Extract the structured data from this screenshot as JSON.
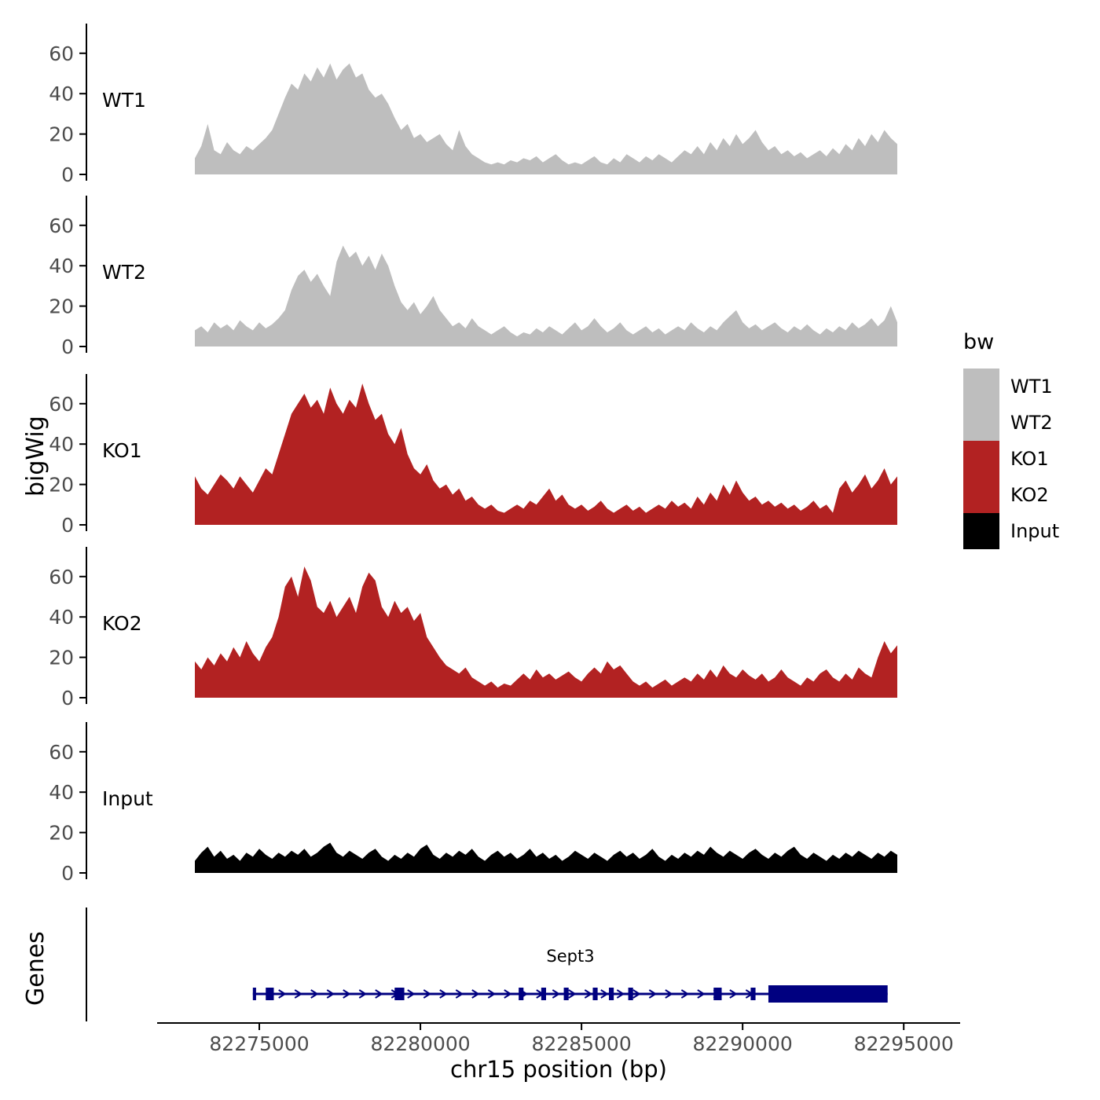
{
  "figure": {
    "y_axis_title": "bigWig",
    "genes_axis_title": "Genes",
    "x_axis_title": "chr15 position (bp)",
    "x_ticks": [
      82275000,
      82280000,
      82285000,
      82290000,
      82295000
    ],
    "x_tick_labels": [
      "82275000",
      "82280000",
      "82285000",
      "82290000",
      "82295000"
    ]
  },
  "legend": {
    "title": "bw",
    "entries": [
      {
        "label": "WT1",
        "color": "#BEBEBE"
      },
      {
        "label": "WT2",
        "color": "#BEBEBE"
      },
      {
        "label": "KO1",
        "color": "#B22222"
      },
      {
        "label": "KO2",
        "color": "#B22222"
      },
      {
        "label": "Input",
        "color": "#000000"
      }
    ]
  },
  "chart_data": {
    "type": "area",
    "title": "",
    "xlabel": "chr15 position (bp)",
    "ylabel": "bigWig",
    "x_range": [
      82273000,
      82294800
    ],
    "x_start": 82273000,
    "x_step": 200,
    "ylim": [
      0,
      70
    ],
    "y_ticks": [
      0,
      20,
      40,
      60
    ],
    "series": [
      {
        "name": "WT1",
        "color": "#BEBEBE",
        "values": [
          8,
          14,
          25,
          12,
          10,
          16,
          12,
          10,
          14,
          12,
          15,
          18,
          22,
          30,
          38,
          45,
          42,
          50,
          46,
          53,
          48,
          55,
          47,
          52,
          55,
          48,
          50,
          42,
          38,
          40,
          35,
          28,
          22,
          25,
          18,
          20,
          16,
          18,
          20,
          15,
          12,
          22,
          14,
          10,
          8,
          6,
          5,
          6,
          5,
          7,
          6,
          8,
          7,
          9,
          6,
          8,
          10,
          7,
          5,
          6,
          5,
          7,
          9,
          6,
          5,
          8,
          6,
          10,
          8,
          6,
          9,
          7,
          10,
          8,
          6,
          9,
          12,
          10,
          14,
          10,
          16,
          12,
          18,
          14,
          20,
          15,
          18,
          22,
          16,
          12,
          14,
          10,
          12,
          9,
          11,
          8,
          10,
          12,
          9,
          13,
          10,
          15,
          12,
          18,
          14,
          20,
          16,
          22,
          18,
          15
        ]
      },
      {
        "name": "WT2",
        "color": "#BEBEBE",
        "values": [
          8,
          10,
          7,
          12,
          9,
          11,
          8,
          13,
          10,
          8,
          12,
          9,
          11,
          14,
          18,
          28,
          35,
          38,
          32,
          36,
          30,
          25,
          42,
          50,
          44,
          47,
          40,
          45,
          38,
          46,
          40,
          30,
          22,
          18,
          22,
          16,
          20,
          25,
          18,
          14,
          10,
          12,
          9,
          14,
          10,
          8,
          6,
          8,
          10,
          7,
          5,
          7,
          6,
          9,
          7,
          10,
          8,
          6,
          9,
          12,
          8,
          10,
          14,
          10,
          7,
          9,
          12,
          8,
          6,
          8,
          10,
          7,
          9,
          6,
          8,
          10,
          8,
          12,
          9,
          7,
          10,
          8,
          12,
          15,
          18,
          12,
          9,
          11,
          8,
          10,
          12,
          9,
          7,
          10,
          8,
          11,
          8,
          6,
          9,
          7,
          10,
          8,
          12,
          9,
          11,
          14,
          10,
          13,
          20,
          12
        ]
      },
      {
        "name": "KO1",
        "color": "#B22222",
        "values": [
          24,
          18,
          15,
          20,
          25,
          22,
          18,
          24,
          20,
          16,
          22,
          28,
          25,
          35,
          45,
          55,
          60,
          65,
          58,
          62,
          55,
          68,
          60,
          55,
          62,
          58,
          70,
          60,
          52,
          55,
          45,
          40,
          48,
          35,
          28,
          25,
          30,
          22,
          18,
          20,
          15,
          18,
          12,
          14,
          10,
          8,
          10,
          7,
          6,
          8,
          10,
          8,
          12,
          10,
          14,
          18,
          12,
          15,
          10,
          8,
          10,
          7,
          9,
          12,
          8,
          6,
          8,
          10,
          7,
          9,
          6,
          8,
          10,
          8,
          12,
          9,
          11,
          8,
          14,
          10,
          16,
          12,
          20,
          15,
          22,
          16,
          12,
          14,
          10,
          12,
          9,
          11,
          8,
          10,
          7,
          9,
          12,
          8,
          10,
          6,
          18,
          22,
          16,
          20,
          25,
          18,
          22,
          28,
          20,
          24
        ]
      },
      {
        "name": "KO2",
        "color": "#B22222",
        "values": [
          18,
          14,
          20,
          16,
          22,
          18,
          25,
          20,
          28,
          22,
          18,
          25,
          30,
          40,
          55,
          60,
          50,
          65,
          58,
          45,
          42,
          48,
          40,
          45,
          50,
          42,
          55,
          62,
          58,
          45,
          40,
          48,
          42,
          45,
          38,
          42,
          30,
          25,
          20,
          16,
          14,
          12,
          15,
          10,
          8,
          6,
          8,
          5,
          7,
          6,
          9,
          12,
          9,
          14,
          10,
          12,
          9,
          11,
          13,
          10,
          8,
          12,
          15,
          12,
          18,
          14,
          16,
          12,
          8,
          6,
          8,
          5,
          7,
          9,
          6,
          8,
          10,
          8,
          12,
          9,
          14,
          10,
          16,
          12,
          10,
          14,
          11,
          9,
          12,
          8,
          10,
          14,
          10,
          8,
          6,
          10,
          8,
          12,
          14,
          10,
          8,
          12,
          9,
          15,
          12,
          10,
          20,
          28,
          22,
          26
        ]
      },
      {
        "name": "Input",
        "color": "#000000",
        "values": [
          6,
          10,
          13,
          8,
          11,
          7,
          9,
          6,
          10,
          8,
          12,
          9,
          7,
          10,
          8,
          11,
          9,
          12,
          8,
          10,
          13,
          15,
          10,
          8,
          11,
          9,
          7,
          10,
          12,
          8,
          6,
          9,
          7,
          10,
          8,
          12,
          14,
          9,
          7,
          10,
          8,
          11,
          9,
          12,
          8,
          6,
          9,
          11,
          8,
          10,
          7,
          9,
          12,
          8,
          10,
          7,
          9,
          6,
          8,
          11,
          9,
          7,
          10,
          8,
          6,
          9,
          11,
          8,
          10,
          7,
          9,
          12,
          8,
          6,
          9,
          7,
          10,
          8,
          11,
          9,
          13,
          10,
          8,
          11,
          9,
          7,
          10,
          12,
          9,
          7,
          10,
          8,
          11,
          13,
          9,
          7,
          10,
          8,
          6,
          9,
          7,
          10,
          8,
          11,
          9,
          7,
          10,
          8,
          11,
          9
        ]
      }
    ],
    "gene_track": {
      "label": "Sept3",
      "color": "#000080",
      "gene": {
        "name": "Sept3",
        "chromosome": "chr15",
        "start": 82274800,
        "end": 82294500,
        "strand": "+",
        "exons": [
          [
            82274800,
            82274900
          ],
          [
            82275200,
            82275450
          ],
          [
            82279200,
            82279500
          ],
          [
            82283050,
            82283200
          ],
          [
            82283750,
            82283900
          ],
          [
            82284450,
            82284600
          ],
          [
            82285350,
            82285500
          ],
          [
            82285850,
            82286000
          ],
          [
            82286450,
            82286600
          ],
          [
            82289100,
            82289350
          ],
          [
            82290250,
            82290400
          ]
        ],
        "thick_region": [
          82290800,
          82294500
        ]
      }
    }
  }
}
